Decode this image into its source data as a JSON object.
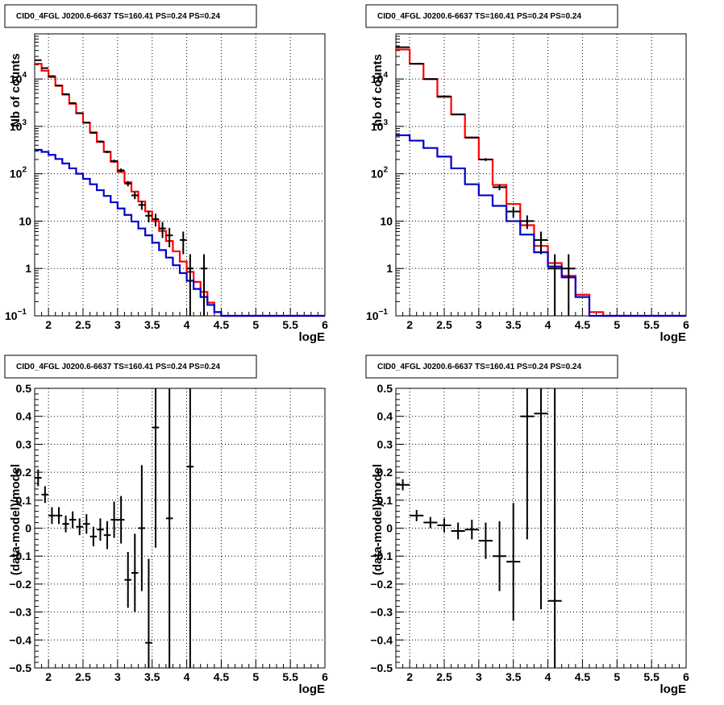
{
  "colors": {
    "data": "#000000",
    "total_model": "#ff0000",
    "background_model": "#0000cc",
    "grid": "#000000"
  },
  "chart_data": [
    {
      "type": "line",
      "title": "CID0_4FGL J0200.6-6637 TS=160.41 PS=0.24 PS=0.24",
      "xlabel": "logE",
      "ylabel": "Nb of counts",
      "xlim": [
        1.8,
        6.0
      ],
      "ylim": [
        0.1,
        90000
      ],
      "yscale": "log",
      "grid": true,
      "x_ticks": [
        "2",
        "2.5",
        "3",
        "3.5",
        "4",
        "4.5",
        "5",
        "5.5",
        "6"
      ],
      "y_ticks": [
        {
          "v": 0.1,
          "label": "10",
          "exp": "−1"
        },
        {
          "v": 1,
          "label": "1"
        },
        {
          "v": 10,
          "label": "10"
        },
        {
          "v": 100,
          "label": "10",
          "exp": "2"
        },
        {
          "v": 1000,
          "label": "10",
          "exp": "3"
        },
        {
          "v": 10000,
          "label": "10",
          "exp": "4"
        }
      ],
      "bin_width": 0.1,
      "series": [
        {
          "role": "total_model",
          "style": "step",
          "x": [
            1.8,
            1.9,
            2.0,
            2.1,
            2.2,
            2.3,
            2.4,
            2.5,
            2.6,
            2.7,
            2.8,
            2.9,
            3.0,
            3.1,
            3.2,
            3.3,
            3.4,
            3.5,
            3.6,
            3.7,
            3.8,
            3.9,
            4.0,
            4.1,
            4.2,
            4.3,
            4.4,
            4.5,
            4.6,
            4.7,
            4.8,
            4.9,
            5.0,
            5.1,
            5.2,
            5.3,
            5.4,
            5.5,
            5.6,
            5.7,
            5.8,
            5.9
          ],
          "values": [
            21000,
            15000,
            11000,
            7200,
            4700,
            3000,
            1900,
            1200,
            750,
            470,
            290,
            180,
            110,
            66,
            42,
            26,
            16,
            10,
            6.2,
            3.8,
            2.3,
            1.4,
            0.85,
            0.52,
            0.32,
            0.19,
            0.12,
            0.1,
            0.1,
            0.1,
            0.1,
            0.1,
            0.1,
            0.1,
            0.1,
            0.1,
            0.1,
            0.1,
            0.1,
            0.1,
            0.1,
            0.1
          ]
        },
        {
          "role": "background_model",
          "style": "step",
          "x": [
            1.8,
            1.9,
            2.0,
            2.1,
            2.2,
            2.3,
            2.4,
            2.5,
            2.6,
            2.7,
            2.8,
            2.9,
            3.0,
            3.1,
            3.2,
            3.3,
            3.4,
            3.5,
            3.6,
            3.7,
            3.8,
            3.9,
            4.0,
            4.1,
            4.2,
            4.3,
            4.4,
            4.5,
            4.6,
            4.7,
            4.8,
            4.9,
            5.0,
            5.1,
            5.2,
            5.3,
            5.4,
            5.5,
            5.6,
            5.7,
            5.8,
            5.9
          ],
          "values": [
            320,
            290,
            250,
            205,
            165,
            130,
            100,
            78,
            60,
            45,
            34,
            25,
            18.5,
            13.5,
            9.8,
            7.0,
            5.0,
            3.5,
            2.45,
            1.7,
            1.17,
            0.8,
            0.55,
            0.37,
            0.25,
            0.17,
            0.12,
            0.1,
            0.1,
            0.1,
            0.1,
            0.1,
            0.1,
            0.1,
            0.1,
            0.1,
            0.1,
            0.1,
            0.1,
            0.1,
            0.1,
            0.1
          ]
        },
        {
          "role": "data",
          "style": "errorbar",
          "x": [
            1.85,
            1.95,
            2.05,
            2.15,
            2.25,
            2.35,
            2.45,
            2.55,
            2.65,
            2.75,
            2.85,
            2.95,
            3.05,
            3.15,
            3.25,
            3.35,
            3.45,
            3.55,
            3.65,
            3.75,
            3.95,
            4.05,
            4.25
          ],
          "values": [
            25000,
            17000,
            11500,
            7300,
            4800,
            3100,
            1900,
            1200,
            730,
            480,
            290,
            185,
            118,
            62,
            35,
            22,
            13,
            11,
            7,
            5,
            4,
            1,
            1
          ],
          "yerr_low": [
            160,
            130,
            107,
            85,
            69,
            56,
            44,
            35,
            27,
            22,
            17,
            14,
            11,
            7.9,
            5.9,
            4.7,
            3.6,
            3.3,
            2.6,
            2.2,
            2.0,
            0.95,
            0.95
          ],
          "yerr_high": [
            160,
            130,
            107,
            85,
            69,
            56,
            44,
            35,
            27,
            22,
            17,
            14,
            11,
            7.9,
            5.9,
            4.7,
            3.6,
            3.3,
            2.6,
            2.2,
            2.0,
            1.0,
            1.0
          ]
        }
      ]
    },
    {
      "type": "line",
      "title": "CID0_4FGL J0200.6-6637 TS=160.41 PS=0.24 PS=0.24",
      "xlabel": "logE",
      "ylabel": "nb of counts",
      "xlim": [
        1.8,
        6.0
      ],
      "ylim": [
        0.1,
        90000
      ],
      "yscale": "log",
      "grid": true,
      "x_ticks": [
        "2",
        "2.5",
        "3",
        "3.5",
        "4",
        "4.5",
        "5",
        "5.5",
        "6"
      ],
      "y_ticks": [
        {
          "v": 0.1,
          "label": "10",
          "exp": "−1"
        },
        {
          "v": 1,
          "label": "1"
        },
        {
          "v": 10,
          "label": "10"
        },
        {
          "v": 100,
          "label": "10",
          "exp": "2"
        },
        {
          "v": 1000,
          "label": "10",
          "exp": "3"
        },
        {
          "v": 10000,
          "label": "10",
          "exp": "4"
        }
      ],
      "bin_width": 0.2,
      "series": [
        {
          "role": "total_model",
          "style": "step",
          "x": [
            1.8,
            2.0,
            2.2,
            2.4,
            2.6,
            2.8,
            3.0,
            3.2,
            3.4,
            3.6,
            3.8,
            4.0,
            4.2,
            4.4,
            4.6,
            4.8,
            5.0,
            5.2,
            5.4,
            5.6,
            5.8
          ],
          "values": [
            42000,
            21000,
            10000,
            4200,
            1800,
            580,
            200,
            58,
            23,
            8.2,
            3.0,
            1.3,
            0.7,
            0.28,
            0.12,
            0.1,
            0.1,
            0.1,
            0.1,
            0.1,
            0.1
          ]
        },
        {
          "role": "background_model",
          "style": "step",
          "x": [
            1.8,
            2.0,
            2.2,
            2.4,
            2.6,
            2.8,
            3.0,
            3.2,
            3.4,
            3.6,
            3.8,
            4.0,
            4.2,
            4.4,
            4.6,
            4.8,
            5.0,
            5.2,
            5.4,
            5.6,
            5.8
          ],
          "values": [
            650,
            500,
            350,
            230,
            130,
            60,
            35,
            21,
            10,
            5.2,
            2.2,
            1.1,
            0.65,
            0.25,
            0.1,
            0.1,
            0.1,
            0.1,
            0.1,
            0.1,
            0.1
          ]
        },
        {
          "role": "data",
          "style": "errorbar",
          "x": [
            1.9,
            2.1,
            2.3,
            2.5,
            2.7,
            2.9,
            3.1,
            3.3,
            3.5,
            3.7,
            3.9,
            4.1,
            4.3
          ],
          "values": [
            47000,
            21000,
            10000,
            4300,
            1780,
            580,
            200,
            52,
            16,
            10,
            4,
            1,
            1
          ],
          "yerr_low": [
            220,
            145,
            100,
            66,
            42,
            24,
            14,
            7.2,
            4,
            3.2,
            2,
            0.95,
            0.95
          ],
          "yerr_high": [
            220,
            145,
            100,
            66,
            42,
            24,
            14,
            7.2,
            4,
            3.2,
            2,
            1.0,
            1.0
          ]
        }
      ]
    },
    {
      "type": "scatter",
      "title": "CID0_4FGL J0200.6-6637 TS=160.41 PS=0.24 PS=0.24",
      "xlabel": "logE",
      "ylabel": "(data-model)/model",
      "xlim": [
        1.8,
        6.0
      ],
      "ylim": [
        -0.5,
        0.5
      ],
      "grid": true,
      "x_ticks": [
        "2",
        "2.5",
        "3",
        "3.5",
        "4",
        "4.5",
        "5",
        "5.5",
        "6"
      ],
      "y_ticks": [
        {
          "v": -0.5,
          "label": "−0.5"
        },
        {
          "v": -0.4,
          "label": "−0.4"
        },
        {
          "v": -0.3,
          "label": "−0.3"
        },
        {
          "v": -0.2,
          "label": "−0.2"
        },
        {
          "v": -0.1,
          "label": "−0.1"
        },
        {
          "v": 0,
          "label": "0"
        },
        {
          "v": 0.1,
          "label": "0.1"
        },
        {
          "v": 0.2,
          "label": "0.2"
        },
        {
          "v": 0.3,
          "label": "0.3"
        },
        {
          "v": 0.4,
          "label": "0.4"
        },
        {
          "v": 0.5,
          "label": "0.5"
        }
      ],
      "bin_width": 0.1,
      "series": [
        {
          "role": "data",
          "style": "errorbar",
          "x": [
            1.85,
            1.95,
            2.05,
            2.15,
            2.25,
            2.35,
            2.45,
            2.55,
            2.65,
            2.75,
            2.85,
            2.95,
            3.05,
            3.15,
            3.25,
            3.35,
            3.45,
            3.55,
            3.75,
            4.05
          ],
          "values": [
            0.18,
            0.12,
            0.045,
            0.045,
            0.015,
            0.03,
            0.005,
            0.015,
            -0.03,
            -0.005,
            -0.025,
            0.03,
            0.03,
            -0.185,
            -0.16,
            0.0,
            -0.41,
            0.36,
            0.035,
            0.22
          ],
          "yerr": [
            0.03,
            0.03,
            0.03,
            0.03,
            0.03,
            0.03,
            0.03,
            0.035,
            0.035,
            0.04,
            0.05,
            0.065,
            0.085,
            0.1,
            0.14,
            0.225,
            0.3,
            0.43,
            0.9,
            1.0
          ]
        }
      ]
    },
    {
      "type": "scatter",
      "title": "CID0_4FGL J0200.6-6637 TS=160.41 PS=0.24 PS=0.24",
      "xlabel": "logE",
      "ylabel": "(data-model)/model",
      "xlim": [
        1.8,
        6.0
      ],
      "ylim": [
        -0.5,
        0.5
      ],
      "grid": true,
      "x_ticks": [
        "2",
        "2.5",
        "3",
        "3.5",
        "4",
        "4.5",
        "5",
        "5.5",
        "6"
      ],
      "y_ticks": [
        {
          "v": -0.5,
          "label": "−0.5"
        },
        {
          "v": -0.4,
          "label": "−0.4"
        },
        {
          "v": -0.3,
          "label": "−0.3"
        },
        {
          "v": -0.2,
          "label": "−0.2"
        },
        {
          "v": -0.1,
          "label": "−0.1"
        },
        {
          "v": 0,
          "label": "0"
        },
        {
          "v": 0.1,
          "label": "0.1"
        },
        {
          "v": 0.2,
          "label": "0.2"
        },
        {
          "v": 0.3,
          "label": "0.3"
        },
        {
          "v": 0.4,
          "label": "0.4"
        },
        {
          "v": 0.5,
          "label": "0.5"
        }
      ],
      "bin_width": 0.2,
      "series": [
        {
          "role": "data",
          "style": "errorbar",
          "x": [
            1.9,
            2.1,
            2.3,
            2.5,
            2.7,
            2.9,
            3.1,
            3.3,
            3.5,
            3.7,
            3.9,
            4.1
          ],
          "values": [
            0.155,
            0.045,
            0.02,
            0.01,
            -0.01,
            -0.005,
            -0.045,
            -0.1,
            -0.12,
            0.4,
            0.41,
            -0.26
          ],
          "yerr": [
            0.02,
            0.02,
            0.02,
            0.025,
            0.03,
            0.035,
            0.065,
            0.125,
            0.21,
            0.44,
            0.7,
            1.0
          ]
        }
      ]
    }
  ]
}
